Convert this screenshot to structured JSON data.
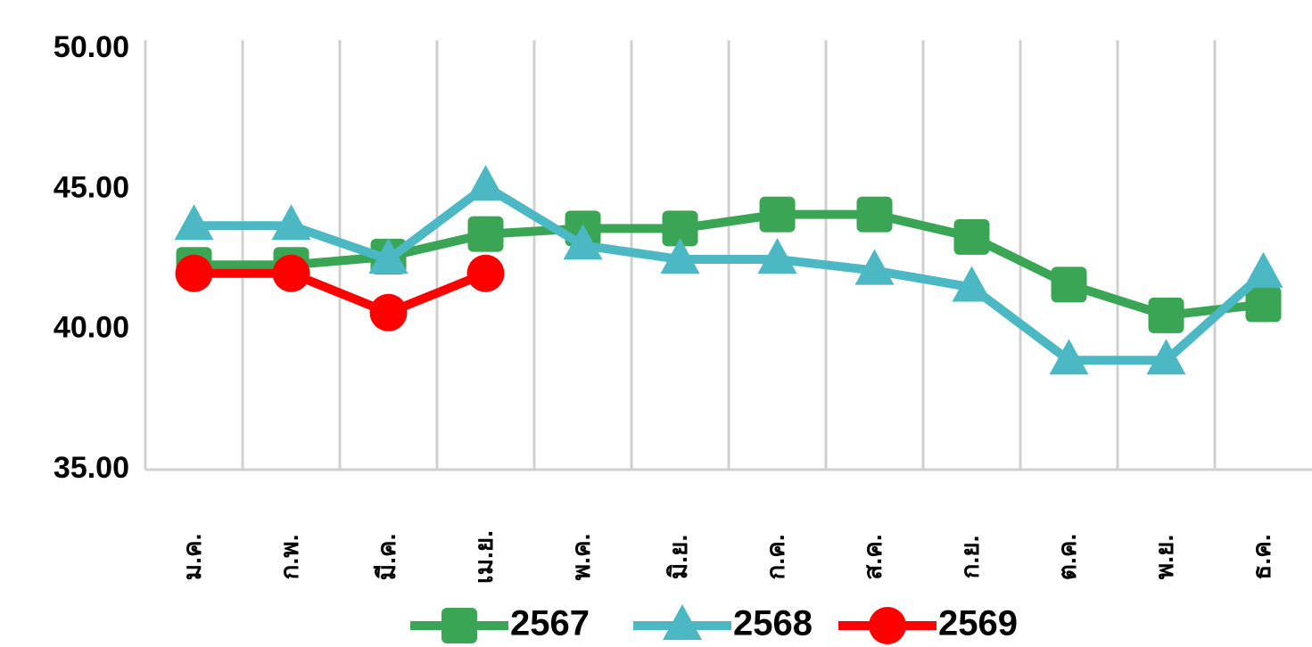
{
  "chart_data": {
    "type": "line",
    "categories": [
      "ม.ค.",
      "ก.พ.",
      "มี.ค.",
      "เม.ย.",
      "พ.ค.",
      "มิ.ย.",
      "ก.ค.",
      "ส.ค.",
      "ก.ย.",
      "ต.ค.",
      "พ.ย.",
      "ธ.ค."
    ],
    "series": [
      {
        "name": "2567",
        "color": "#3aa655",
        "marker": "square",
        "values": [
          42.3,
          42.3,
          42.6,
          43.4,
          43.6,
          43.6,
          44.1,
          44.1,
          43.3,
          41.6,
          40.5,
          40.9
        ]
      },
      {
        "name": "2568",
        "color": "#4bb8c4",
        "marker": "triangle",
        "values": [
          43.7,
          43.7,
          42.5,
          45.1,
          43.0,
          42.5,
          42.5,
          42.1,
          41.5,
          38.9,
          38.9,
          42.0
        ]
      },
      {
        "name": "2569",
        "color": "#ff0000",
        "marker": "circle",
        "values": [
          42.0,
          42.0,
          40.6,
          42.0,
          null,
          null,
          null,
          null,
          null,
          null,
          null,
          null
        ]
      }
    ],
    "ylim": [
      35,
      50
    ],
    "yticks": [
      {
        "value": 35,
        "label": "35.00"
      },
      {
        "value": 40,
        "label": "40.00"
      },
      {
        "value": 45,
        "label": "45.00"
      },
      {
        "value": 50,
        "label": "50.00"
      }
    ],
    "grid": "x",
    "legend": "bottom"
  }
}
